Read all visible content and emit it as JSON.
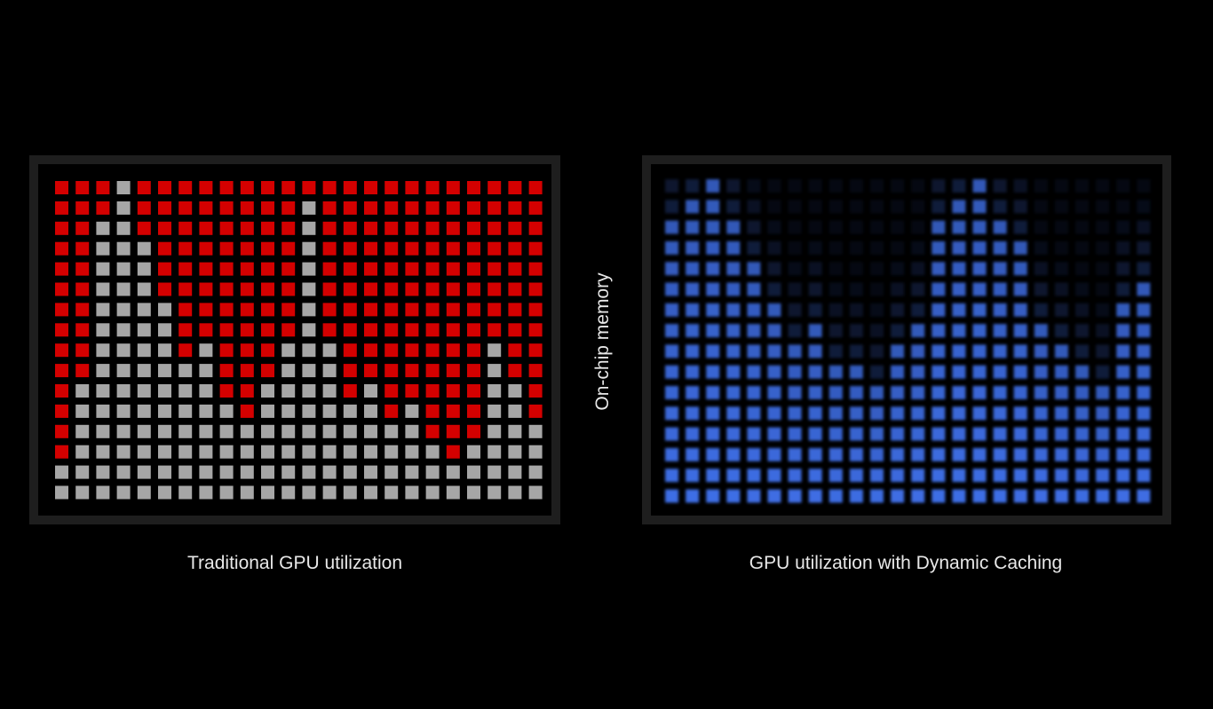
{
  "side_label": "On-chip memory",
  "panels": [
    {
      "caption": "Traditional GPU utilization"
    },
    {
      "caption": "GPU utilization with Dynamic Caching"
    }
  ]
}
